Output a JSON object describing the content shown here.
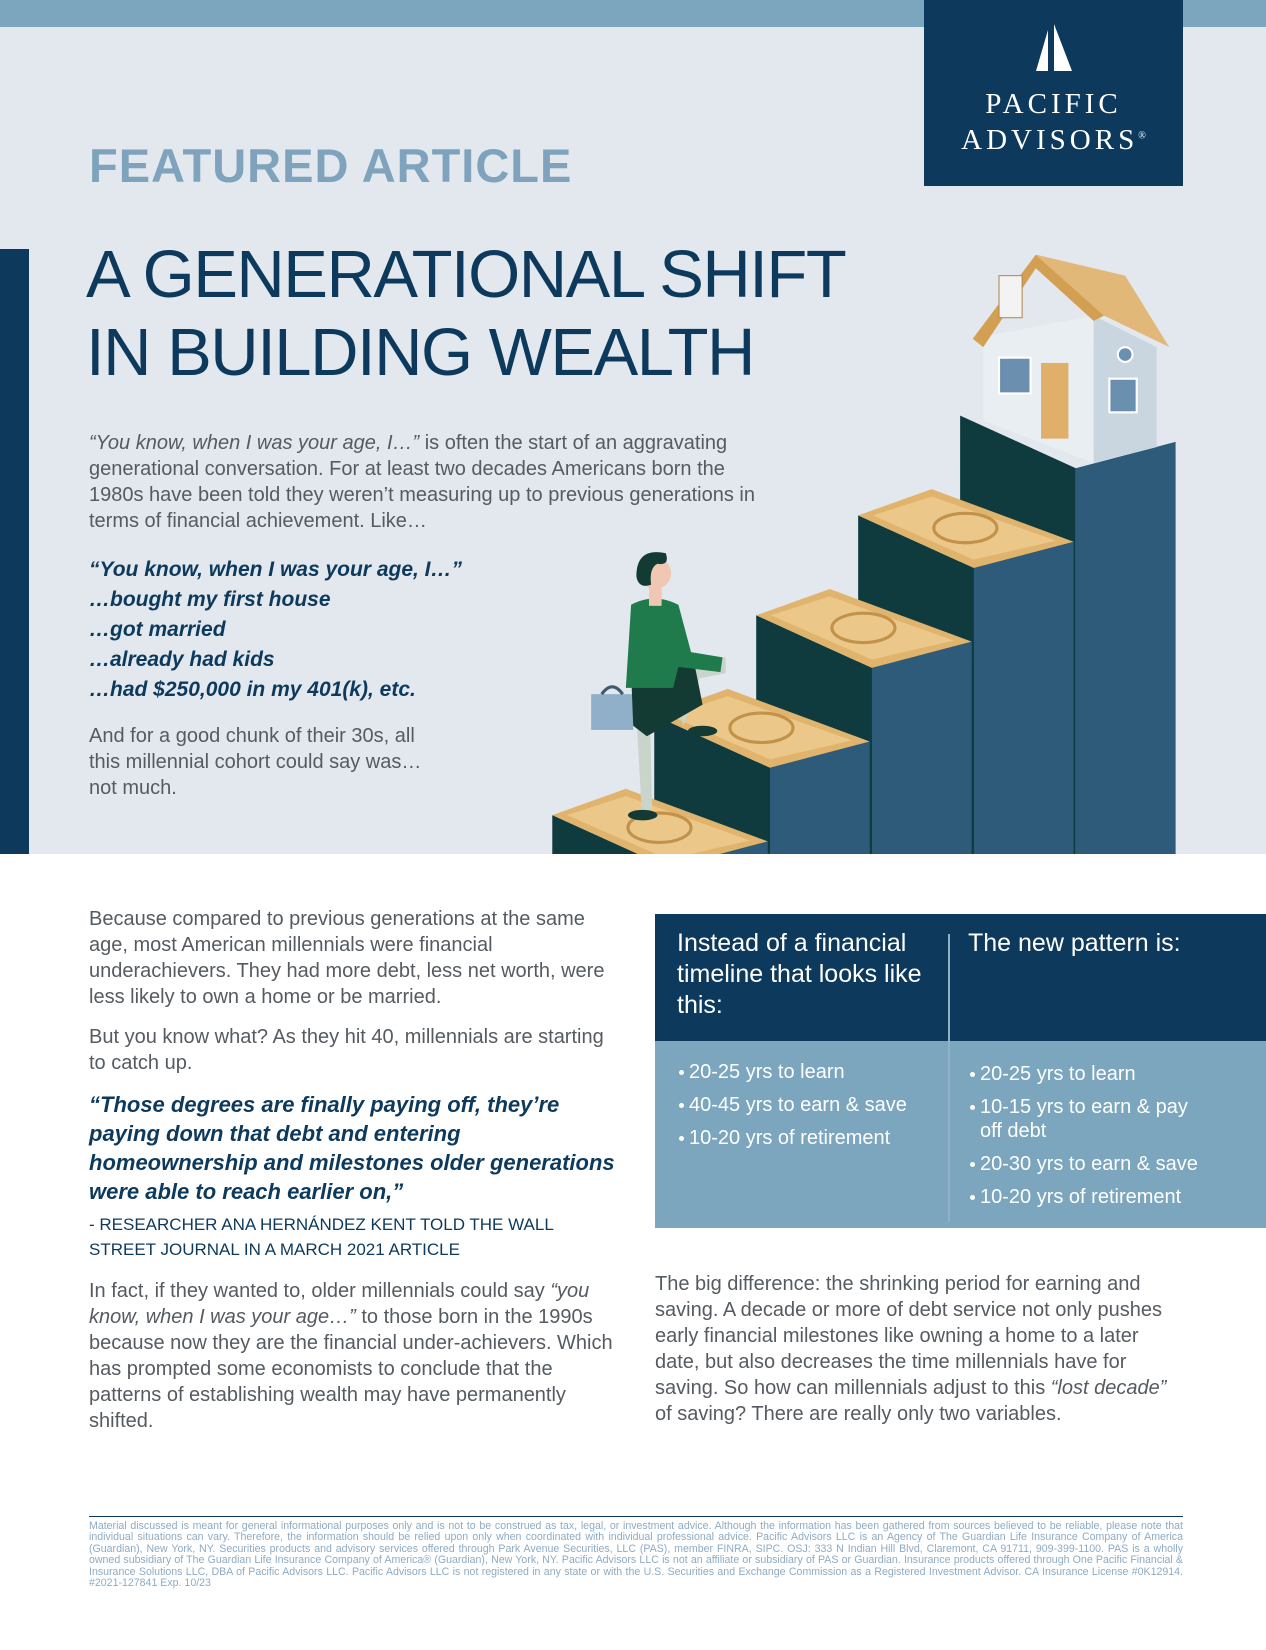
{
  "header": {
    "logo": {
      "line1": "PACIFIC",
      "line2": "ADVISORS",
      "mark": "®"
    },
    "kicker": "FEATURED ARTICLE",
    "title": [
      "A GENERATIONAL SHIFT",
      "IN BUILDING WEALTH"
    ]
  },
  "intro": {
    "paragraph": [
      {
        "text": "“You know, when I was your age, I…”",
        "italic": true
      },
      {
        "text": " is often the start of an aggravating generational conversation. For at least two decades Americans born the 1980s have been told they weren’t measuring up to previous generations in terms of financial achievement. Like…"
      }
    ],
    "quote_lines": [
      "“You know, when I was your age, I…”",
      "…bought my first house",
      "…got married",
      "…already had kids",
      "…had $250,000 in my 401(k), etc."
    ],
    "closing": "And for a good chunk of their 30s, all this millennial cohort could say was… not much."
  },
  "left_column": {
    "paragraphs": [
      "Because compared to previous generations at the same age, most American millennials were financial underachievers. They had more debt, less net worth, were less likely to own a home or be married.",
      "But you know what? As they hit 40, millennials are starting to catch up."
    ],
    "pull_quote": "“Those degrees are finally paying off, they’re paying down that debt and entering homeownership and milestones older generations were able to reach earlier on,”",
    "attribution": "- RESEARCHER ANA HERNÁNDEZ KENT TOLD THE WALL STREET JOURNAL IN A MARCH 2021 ARTICLE",
    "closing": [
      {
        "text": "In fact, if they wanted to, older millennials could say "
      },
      {
        "text": "“you know, when I was your age…”",
        "italic": true
      },
      {
        "text": " to those born in the 1990s because now they are the financial under-achievers. Which has prompted some economists to conclude that the patterns of establishing wealth may have permanently shifted."
      }
    ]
  },
  "table": {
    "headers": [
      "Instead of a financial timeline that looks like this:",
      "The new pattern is:"
    ],
    "columns": [
      [
        "20-25 yrs to learn",
        "40-45 yrs to earn & save",
        "10-20 yrs of retirement"
      ],
      [
        "20-25 yrs to learn",
        "10-15 yrs to earn & pay off debt",
        "20-30 yrs to earn & save",
        "10-20 yrs of retirement"
      ]
    ]
  },
  "right_column": {
    "paragraph": [
      {
        "text": "The big difference: the shrinking period for earning and saving. A decade or more of debt service not only pushes early financial milestones like owning a home to a later date, but also decreases the time millennials have for saving. So how can millennials adjust to this "
      },
      {
        "text": "“lost decade”",
        "italic": true
      },
      {
        "text": " of saving? There are really only two variables."
      }
    ]
  },
  "footer": {
    "disclaimer": "Material discussed is meant for general informational purposes only and is not to be construed as tax, legal, or investment advice. Although the information has been gathered from sources believed to be reliable, please note that individual situations can vary. Therefore, the information should be relied upon only when coordinated with individual professional advice. Pacific Advisors LLC is an Agency of The Guardian Life Insurance Company of America (Guardian), New York, NY. Securities products and advisory services offered through Park Avenue Securities, LLC (PAS), member FINRA, SIPC. OSJ: 333 N Indian Hill Blvd, Claremont, CA 91711, 909-399-1100. PAS is a wholly owned subsidiary of The Guardian Life Insurance Company of America® (Guardian), New York, NY. Pacific Advisors LLC is not an affiliate or subsidiary of PAS or Guardian. Insurance products offered through One Pacific Financial & Insurance Solutions LLC, DBA of Pacific Advisors LLC. Pacific Advisors LLC is not registered in any state or with the U.S. Securities and Exchange Commission as a Registered Investment Advisor. CA Insurance License #0K12914. #2021-127841 Exp. 10/23"
  }
}
